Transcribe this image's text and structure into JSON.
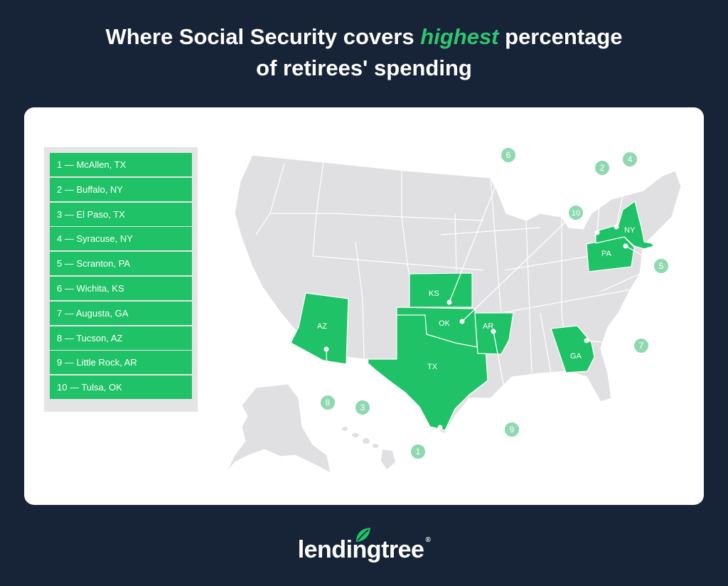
{
  "title": {
    "line1_before": "Where Social Security covers ",
    "line1_highlight": "highest",
    "line1_after": " percentage",
    "line2": "of retirees' spending"
  },
  "legend": [
    "1 — McAllen, TX",
    "2 — Buffalo, NY",
    "3 — El Paso, TX",
    "4 — Syracuse, NY",
    "5 — Scranton, PA",
    "6 — Wichita, KS",
    "7 — Augusta, GA",
    "8 — Tucson, AZ",
    "9 — Little Rock, AR",
    "10 — Tulsa, OK"
  ],
  "states": {
    "ny": "NY",
    "pa": "PA",
    "ks": "KS",
    "az": "AZ",
    "ok": "OK",
    "ar": "AR",
    "tx": "TX",
    "ga": "GA"
  },
  "markers": [
    "1",
    "2",
    "3",
    "4",
    "5",
    "6",
    "7",
    "8",
    "9",
    "10"
  ],
  "brand": {
    "name": "lendingtree",
    "reg": "®"
  },
  "colors": {
    "background": "#172336",
    "accent": "#1fc266",
    "highlight_text": "#2ec76f",
    "state_gray": "#e0e0e2",
    "marker": "#8fd8b0"
  }
}
